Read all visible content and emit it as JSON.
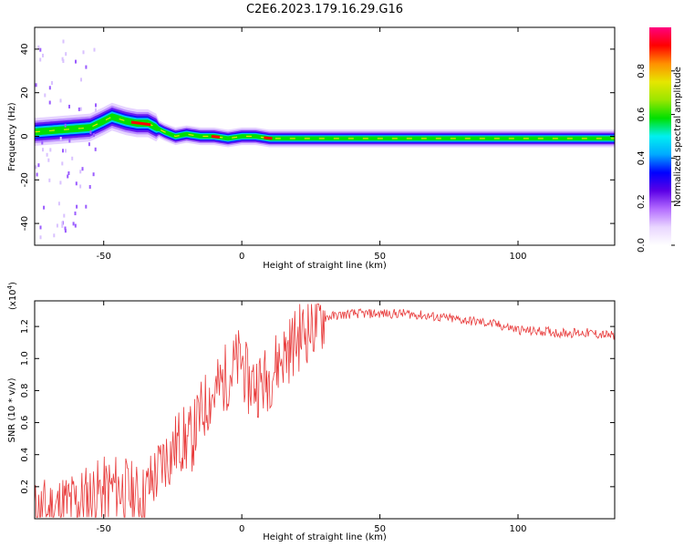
{
  "title": "C2E6.2023.179.16.29.G16",
  "chart_data": [
    {
      "type": "heatmap",
      "xlabel": "Height of straight line (km)",
      "ylabel": "Frequency (Hz)",
      "xlim": [
        -75,
        135
      ],
      "ylim": [
        -50,
        50
      ],
      "xticks": [
        "-50",
        "0",
        "50",
        "100"
      ],
      "yticks": [
        "-40",
        "-20",
        "0",
        "20",
        "40"
      ],
      "colorbar": {
        "label": "Normalized spectral amplitude",
        "range": [
          0,
          1
        ],
        "ticks": [
          "0.0",
          "0.2",
          "0.4",
          "0.6",
          "0.8"
        ],
        "colors": [
          "#ffffff",
          "#e9d6ff",
          "#b36bff",
          "#5b00e6",
          "#0000ff",
          "#00aaff",
          "#00f0f0",
          "#00e000",
          "#9be600",
          "#e6e600",
          "#ff9000",
          "#ff0000",
          "#ff007f"
        ]
      },
      "ridge": {
        "x": [
          -75,
          -65,
          -55,
          -50,
          -47,
          -42,
          -38,
          -34,
          -31,
          -28,
          -24,
          -20,
          -15,
          -10,
          -5,
          0,
          5,
          10,
          15,
          20,
          40,
          60,
          80,
          100,
          120,
          135
        ],
        "frequency": [
          2,
          3,
          4,
          7,
          9,
          7,
          6,
          6,
          4,
          2,
          0,
          1,
          0,
          0,
          -1,
          0,
          0,
          -1,
          -1,
          -1,
          -1,
          -1,
          -1,
          -1,
          -1,
          -1
        ]
      }
    },
    {
      "type": "line",
      "xlabel": "Height of straight line (km)",
      "ylabel": "SNR (10 * v/v)",
      "yscale_label": "(x10",
      "yscale_exponent": "4",
      "xlim": [
        -75,
        135
      ],
      "ylim": [
        0,
        1.36
      ],
      "xticks": [
        "-50",
        "0",
        "50",
        "100"
      ],
      "yticks": [
        "0.2",
        "0.4",
        "0.6",
        "0.8",
        "1.0",
        "1.2"
      ],
      "color": "#e83a3a",
      "series": [
        {
          "x": [
            -75,
            -70,
            -65,
            -60,
            -55,
            -50,
            -45,
            -40,
            -36,
            -32,
            -30,
            -28,
            -26,
            -24,
            -22,
            -20,
            -18,
            -16,
            -14,
            -12,
            -10,
            -8,
            -6,
            -4,
            -2,
            0,
            2,
            4,
            6,
            8,
            10,
            12,
            14,
            16,
            18,
            20,
            22,
            25,
            28,
            31,
            35,
            40,
            45,
            50,
            55,
            60,
            65,
            70,
            75,
            80,
            85,
            90,
            95,
            100,
            105,
            110,
            115,
            120,
            125,
            130,
            135
          ],
          "values": [
            0.03,
            0.05,
            0.08,
            0.1,
            0.14,
            0.17,
            0.2,
            0.15,
            0.12,
            0.25,
            0.3,
            0.38,
            0.4,
            0.45,
            0.5,
            0.48,
            0.5,
            0.6,
            0.68,
            0.75,
            0.78,
            0.82,
            0.88,
            0.92,
            0.96,
            1.0,
            0.85,
            0.85,
            0.85,
            0.85,
            0.9,
            0.95,
            1.0,
            1.04,
            1.08,
            1.12,
            1.16,
            1.2,
            1.24,
            1.26,
            1.27,
            1.28,
            1.28,
            1.28,
            1.28,
            1.28,
            1.27,
            1.26,
            1.25,
            1.24,
            1.23,
            1.22,
            1.2,
            1.18,
            1.17,
            1.17,
            1.16,
            1.16,
            1.16,
            1.15,
            1.14
          ]
        }
      ]
    }
  ]
}
